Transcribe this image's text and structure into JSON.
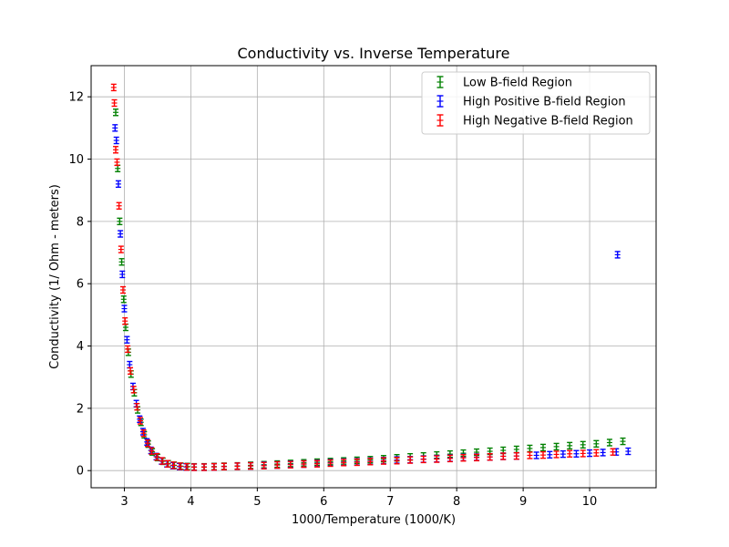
{
  "chart_data": {
    "type": "scatter",
    "title": "Conductivity vs. Inverse Temperature",
    "xlabel": "1000/Temperature (1000/K)",
    "ylabel": "Conductivity (1/ Ohm - meters)",
    "xlim": [
      2.5,
      11.0
    ],
    "ylim": [
      -0.55,
      13.0
    ],
    "xticks": [
      "3",
      "4",
      "5",
      "6",
      "7",
      "8",
      "9",
      "10"
    ],
    "yticks": [
      "0",
      "2",
      "4",
      "6",
      "8",
      "10",
      "12"
    ],
    "grid": true,
    "legend_position": "top-right",
    "markers": "errorbar",
    "series": [
      {
        "name": "Low B-field Region",
        "color": "#008000",
        "x": [
          2.87,
          2.9,
          2.93,
          2.96,
          2.99,
          3.02,
          3.06,
          3.1,
          3.15,
          3.2,
          3.25,
          3.3,
          3.36,
          3.42,
          3.5,
          3.58,
          3.66,
          3.75,
          3.85,
          3.95,
          4.05,
          4.2,
          4.35,
          4.5,
          4.7,
          4.9,
          5.1,
          5.3,
          5.5,
          5.7,
          5.9,
          6.1,
          6.3,
          6.5,
          6.7,
          6.9,
          7.1,
          7.3,
          7.5,
          7.7,
          7.9,
          8.1,
          8.3,
          8.5,
          8.7,
          8.9,
          9.1,
          9.3,
          9.5,
          9.7,
          9.9,
          10.1,
          10.3,
          10.5
        ],
        "y": [
          11.5,
          9.7,
          8.0,
          6.7,
          5.5,
          4.6,
          3.8,
          3.1,
          2.5,
          1.95,
          1.55,
          1.15,
          0.85,
          0.6,
          0.42,
          0.3,
          0.22,
          0.17,
          0.14,
          0.13,
          0.12,
          0.12,
          0.13,
          0.14,
          0.15,
          0.17,
          0.19,
          0.21,
          0.23,
          0.25,
          0.27,
          0.29,
          0.31,
          0.33,
          0.35,
          0.38,
          0.41,
          0.44,
          0.47,
          0.5,
          0.53,
          0.56,
          0.59,
          0.62,
          0.65,
          0.68,
          0.71,
          0.74,
          0.77,
          0.8,
          0.83,
          0.86,
          0.9,
          0.94
        ]
      },
      {
        "name": "High Positive B-field Region",
        "color": "#0000ff",
        "x": [
          2.86,
          2.88,
          2.91,
          2.94,
          2.97,
          3.0,
          3.04,
          3.08,
          3.13,
          3.18,
          3.23,
          3.28,
          3.34,
          3.4,
          3.48,
          3.56,
          3.64,
          3.73,
          3.83,
          3.93,
          4.05,
          4.2,
          4.35,
          4.5,
          4.7,
          4.9,
          5.1,
          5.3,
          5.5,
          5.7,
          5.9,
          6.1,
          6.3,
          6.5,
          6.7,
          6.9,
          7.1,
          7.3,
          7.5,
          7.7,
          7.9,
          8.1,
          8.3,
          8.5,
          8.7,
          8.9,
          9.2,
          9.4,
          9.6,
          9.8,
          10.0,
          10.2,
          10.4,
          10.58,
          10.42
        ],
        "y": [
          11.0,
          10.6,
          9.2,
          7.6,
          6.3,
          5.2,
          4.2,
          3.4,
          2.7,
          2.15,
          1.65,
          1.25,
          0.92,
          0.65,
          0.45,
          0.31,
          0.22,
          0.16,
          0.13,
          0.12,
          0.11,
          0.11,
          0.12,
          0.13,
          0.14,
          0.15,
          0.17,
          0.18,
          0.2,
          0.21,
          0.23,
          0.25,
          0.27,
          0.28,
          0.3,
          0.32,
          0.34,
          0.35,
          0.37,
          0.38,
          0.4,
          0.42,
          0.43,
          0.44,
          0.46,
          0.47,
          0.49,
          0.51,
          0.53,
          0.54,
          0.56,
          0.58,
          0.6,
          0.62,
          6.93
        ]
      },
      {
        "name": "High Negative B-field Region",
        "color": "#ff0000",
        "x": [
          2.84,
          2.85,
          2.87,
          2.89,
          2.92,
          2.95,
          2.98,
          3.01,
          3.05,
          3.09,
          3.14,
          3.19,
          3.24,
          3.29,
          3.35,
          3.41,
          3.49,
          3.57,
          3.65,
          3.74,
          3.84,
          3.94,
          4.05,
          4.2,
          4.35,
          4.5,
          4.7,
          4.9,
          5.1,
          5.3,
          5.5,
          5.7,
          5.9,
          6.1,
          6.3,
          6.5,
          6.7,
          6.9,
          7.1,
          7.3,
          7.5,
          7.7,
          7.9,
          8.1,
          8.3,
          8.5,
          8.7,
          8.9,
          9.1,
          9.3,
          9.5,
          9.7,
          9.9,
          10.1,
          10.35
        ],
        "y": [
          12.3,
          11.8,
          10.3,
          9.9,
          8.5,
          7.1,
          5.8,
          4.8,
          3.9,
          3.2,
          2.6,
          2.05,
          1.6,
          1.2,
          0.88,
          0.63,
          0.44,
          0.31,
          0.22,
          0.17,
          0.14,
          0.12,
          0.11,
          0.11,
          0.12,
          0.13,
          0.14,
          0.15,
          0.16,
          0.18,
          0.19,
          0.21,
          0.22,
          0.24,
          0.26,
          0.27,
          0.29,
          0.31,
          0.32,
          0.34,
          0.36,
          0.37,
          0.39,
          0.41,
          0.42,
          0.44,
          0.46,
          0.47,
          0.49,
          0.5,
          0.52,
          0.54,
          0.55,
          0.57,
          0.6
        ]
      }
    ]
  }
}
